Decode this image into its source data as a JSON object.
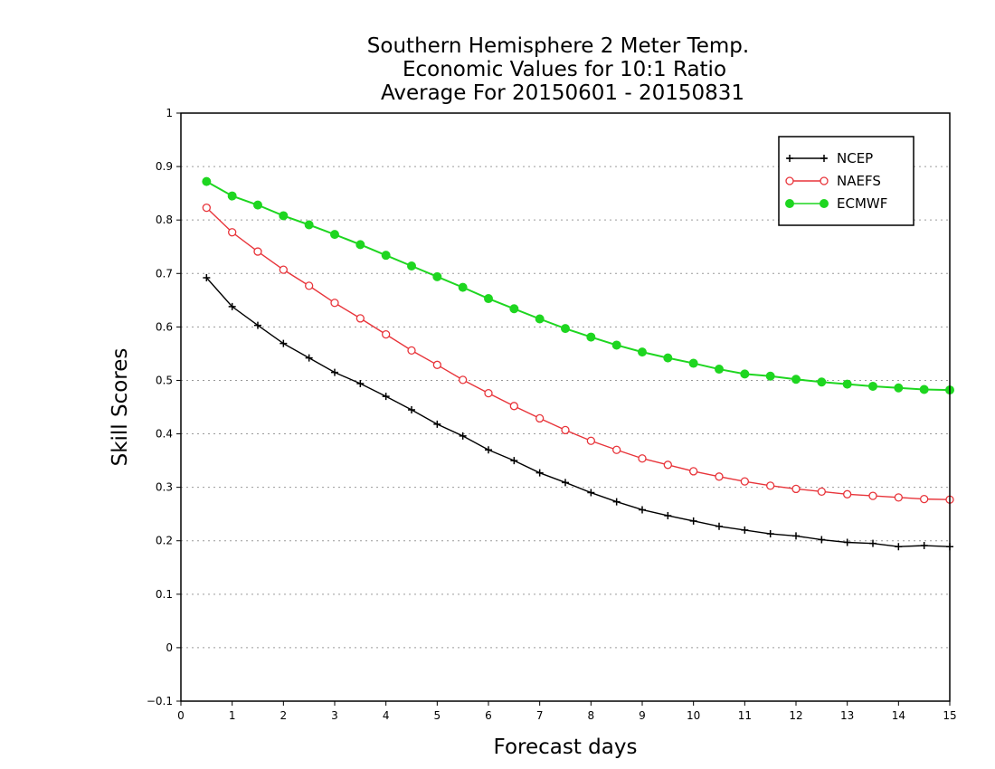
{
  "chart_data": {
    "type": "line",
    "title_lines": [
      "Southern Hemisphere 2 Meter Temp.",
      "Economic Values for 10:1 Ratio",
      "Average For 20150601 - 20150831"
    ],
    "xlabel": "Forecast days",
    "ylabel": "Skill Scores",
    "xlim": [
      0,
      15
    ],
    "ylim": [
      -0.1,
      1
    ],
    "xticks": [
      "0",
      "1",
      "2",
      "3",
      "4",
      "5",
      "6",
      "7",
      "8",
      "9",
      "10",
      "11",
      "12",
      "13",
      "14",
      "15"
    ],
    "yticks": [
      "−0.1",
      "0",
      "0.1",
      "0.2",
      "0.3",
      "0.4",
      "0.5",
      "0.6",
      "0.7",
      "0.8",
      "0.9",
      "1"
    ],
    "grid": "horizontal dotted",
    "legend_position": "top-right",
    "x": [
      0.5,
      1,
      1.5,
      2,
      2.5,
      3,
      3.5,
      4,
      4.5,
      5,
      5.5,
      6,
      6.5,
      7,
      7.5,
      8,
      8.5,
      9,
      9.5,
      10,
      10.5,
      11,
      11.5,
      12,
      12.5,
      13,
      13.5,
      14,
      14.5,
      15
    ],
    "series": [
      {
        "name": "NCEP",
        "color": "#000000",
        "marker": "plus",
        "values": [
          0.692,
          0.638,
          0.603,
          0.569,
          0.542,
          0.515,
          0.494,
          0.47,
          0.445,
          0.418,
          0.396,
          0.37,
          0.35,
          0.327,
          0.309,
          0.29,
          0.273,
          0.258,
          0.247,
          0.237,
          0.227,
          0.22,
          0.213,
          0.209,
          0.202,
          0.197,
          0.195,
          0.189,
          0.191,
          0.189
        ]
      },
      {
        "name": "NAEFS",
        "color": "#e8343a",
        "marker": "open-circle",
        "values": [
          0.823,
          0.777,
          0.741,
          0.707,
          0.677,
          0.645,
          0.616,
          0.586,
          0.556,
          0.529,
          0.501,
          0.476,
          0.452,
          0.429,
          0.407,
          0.387,
          0.37,
          0.354,
          0.342,
          0.33,
          0.32,
          0.311,
          0.303,
          0.297,
          0.292,
          0.287,
          0.284,
          0.281,
          0.278,
          0.277
        ]
      },
      {
        "name": "ECMWF",
        "color": "#1ed620",
        "marker": "filled-circle",
        "values": [
          0.872,
          0.845,
          0.828,
          0.808,
          0.791,
          0.773,
          0.754,
          0.734,
          0.714,
          0.694,
          0.674,
          0.653,
          0.634,
          0.615,
          0.597,
          0.581,
          0.566,
          0.553,
          0.542,
          0.532,
          0.521,
          0.512,
          0.508,
          0.502,
          0.497,
          0.493,
          0.489,
          0.486,
          0.483,
          0.482
        ]
      }
    ]
  }
}
